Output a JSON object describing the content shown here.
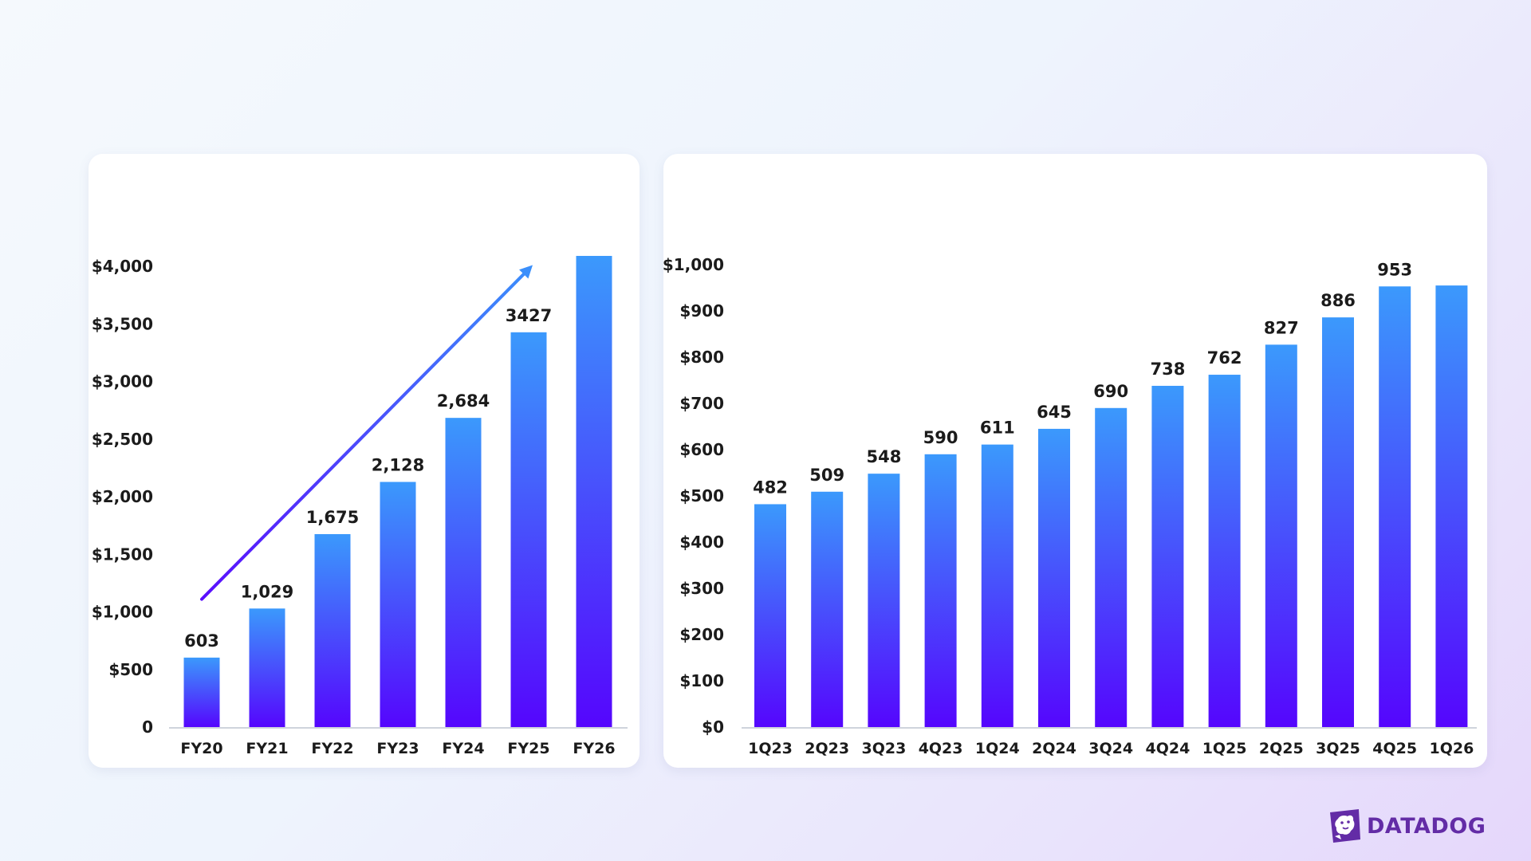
{
  "brand": {
    "name": "DATADOG",
    "icon": "datadog-dog-icon",
    "color": "#632ca6"
  },
  "colors": {
    "bar_top": "#3b99fc",
    "bar_bottom": "#5506fd",
    "arrow_start": "#5a0dfd",
    "arrow_end": "#3b8ffb",
    "axis": "#cfd4dc"
  },
  "chart_data": [
    {
      "type": "bar",
      "categories": [
        "FY20",
        "FY21",
        "FY22",
        "FY23",
        "FY24",
        "FY25",
        "FY26"
      ],
      "values": [
        603,
        1029,
        1675,
        2128,
        2684,
        3427,
        4090
      ],
      "data_labels": [
        "603",
        "1,029",
        "1,675",
        "2,128",
        "2,684",
        "3427",
        ""
      ],
      "ylim": [
        0,
        4000
      ],
      "yticks": [
        0,
        500,
        1000,
        1500,
        2000,
        2500,
        3000,
        3500,
        4000
      ],
      "ytick_labels": [
        "0",
        "$500",
        "$1,000",
        "$1,500",
        "$2,000",
        "$2,500",
        "$3,000",
        "$3,500",
        "$4,000"
      ],
      "annotations": [
        {
          "type": "trend-arrow",
          "from": [
            "FY20",
            1110
          ],
          "to": [
            "FY25",
            4010
          ]
        }
      ],
      "grid": false,
      "title": "",
      "xlabel": "",
      "ylabel": ""
    },
    {
      "type": "bar",
      "categories": [
        "1Q23",
        "2Q23",
        "3Q23",
        "4Q23",
        "1Q24",
        "2Q24",
        "3Q24",
        "4Q24",
        "1Q25",
        "2Q25",
        "3Q25",
        "4Q25",
        "1Q26"
      ],
      "values": [
        482,
        509,
        548,
        590,
        611,
        645,
        690,
        738,
        762,
        827,
        886,
        953,
        955
      ],
      "data_labels": [
        "482",
        "509",
        "548",
        "590",
        "611",
        "645",
        "690",
        "738",
        "762",
        "827",
        "886",
        "953",
        ""
      ],
      "ylim": [
        0,
        1000
      ],
      "yticks": [
        0,
        100,
        200,
        300,
        400,
        500,
        600,
        700,
        800,
        900,
        1000
      ],
      "ytick_labels": [
        "$0",
        "$100",
        "$200",
        "$300",
        "$400",
        "$500",
        "$600",
        "$700",
        "$800",
        "$900",
        "$1,000"
      ],
      "grid": false,
      "title": "",
      "xlabel": "",
      "ylabel": ""
    }
  ]
}
